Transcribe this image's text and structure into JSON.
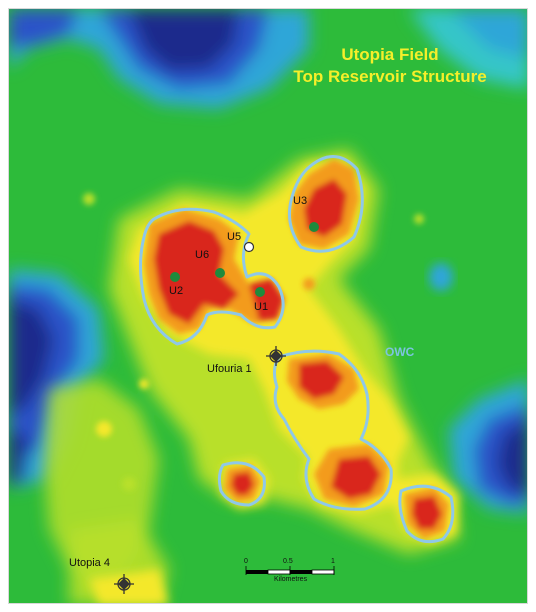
{
  "map": {
    "title_line_1": "Utopia Field",
    "title_line_2": "Top Reservoir Structure",
    "contact_label": "OWC",
    "wells": {
      "u1": "U1",
      "u2": "U2",
      "u3": "U3",
      "u5": "U5",
      "u6": "U6",
      "ufouria_1": "Ufouria 1",
      "utopia_4": "Utopia 4"
    },
    "scale_bar": {
      "tick_0": "0",
      "tick_mid": "0.5",
      "tick_end": "1",
      "unit": "Kilometres"
    }
  },
  "colors": {
    "deep": "#1a2a8c",
    "deep_mid": "#2a52c8",
    "shallow_blue": "#2fa6d8",
    "cyan": "#35c6c8",
    "green": "#2dbb3a",
    "yellow_green": "#b8e02a",
    "yellow": "#f4e82a",
    "orange": "#f39b1c",
    "red": "#d9281e",
    "owc_line": "#8fc8e8",
    "title": "#f5ef2a",
    "well_dot": "#1e8a3c"
  }
}
